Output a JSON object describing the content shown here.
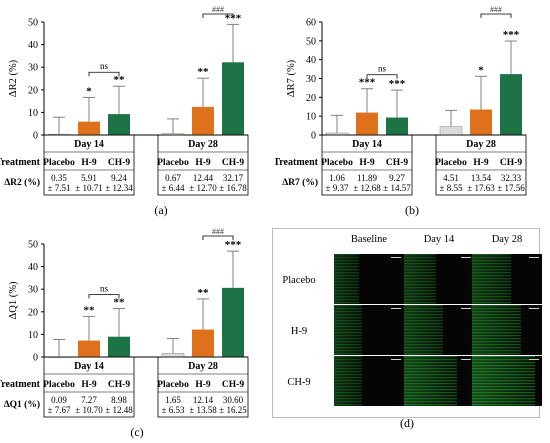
{
  "colors": {
    "placebo": "#dcdcdc",
    "h9": "#e0711c",
    "ch9": "#1e7346",
    "error": "#808080"
  },
  "panels": [
    {
      "id": "a",
      "label": "(a)",
      "ylabel": "ΔR2 (%)",
      "ylim": [
        0,
        50
      ],
      "yticks": [
        "0",
        "10",
        "20",
        "30",
        "40",
        "50"
      ],
      "group_labels": [
        "Day 14",
        "Day 28"
      ],
      "row_treatment": "Treatment",
      "row_metric": "ΔR2 (%)",
      "treatments": [
        "Placebo",
        "H-9",
        "CH-9"
      ],
      "ns_label": "ns",
      "hash_label": "###",
      "cells": [
        [
          "0.35",
          "± 7.51"
        ],
        [
          "5.91",
          "± 10.71"
        ],
        [
          "9.24",
          "± 12.34"
        ],
        [
          "0.67",
          "± 6.44"
        ],
        [
          "12.44",
          "± 12.70"
        ],
        [
          "32.17",
          "± 16.78"
        ]
      ]
    },
    {
      "id": "b",
      "label": "(b)",
      "ylabel": "ΔR7 (%)",
      "ylim": [
        0,
        60
      ],
      "yticks": [
        "0",
        "10",
        "20",
        "30",
        "40",
        "50",
        "60"
      ],
      "group_labels": [
        "Day 14",
        "Day 28"
      ],
      "row_treatment": "Treatment",
      "row_metric": "ΔR7 (%)",
      "treatments": [
        "Placebo",
        "H-9",
        "CH-9"
      ],
      "ns_label": "ns",
      "hash_label": "###",
      "cells": [
        [
          "1.06",
          "± 9.37"
        ],
        [
          "11.89",
          "± 12.68"
        ],
        [
          "9.27",
          "± 14.57"
        ],
        [
          "4.51",
          "± 8.55"
        ],
        [
          "13.54",
          "± 17.63"
        ],
        [
          "32.33",
          "± 17.56"
        ]
      ]
    },
    {
      "id": "c",
      "label": "(c)",
      "ylabel": "ΔQ1 (%)",
      "ylim": [
        0,
        50
      ],
      "yticks": [
        "0",
        "10",
        "20",
        "30",
        "40",
        "50"
      ],
      "group_labels": [
        "Day 14",
        "Day 28"
      ],
      "row_treatment": "Treatment",
      "row_metric": "ΔQ1 (%)",
      "treatments": [
        "Placebo",
        "H-9",
        "CH-9"
      ],
      "ns_label": "ns",
      "hash_label": "###",
      "cells": [
        [
          "0.09",
          "± 7.67"
        ],
        [
          "7.27",
          "± 10.70"
        ],
        [
          "8.98",
          "± 12.48"
        ],
        [
          "1.65",
          "± 6.53"
        ],
        [
          "12.14",
          "± 13.58"
        ],
        [
          "30.60",
          "± 16.25"
        ]
      ]
    }
  ],
  "chart_data": [
    {
      "type": "bar",
      "categories": [
        "Day 14",
        "Day 28"
      ],
      "ylabel": "ΔR2 (%)",
      "ylim": [
        0,
        50
      ],
      "series": [
        {
          "name": "Placebo",
          "values": [
            0.35,
            0.67
          ],
          "errors": [
            7.51,
            6.44
          ],
          "sig": [
            "",
            ""
          ]
        },
        {
          "name": "H-9",
          "values": [
            5.91,
            12.44
          ],
          "errors": [
            10.71,
            12.7
          ],
          "sig": [
            "*",
            "**"
          ]
        },
        {
          "name": "CH-9",
          "values": [
            9.24,
            32.17
          ],
          "errors": [
            12.34,
            16.78
          ],
          "sig": [
            "**",
            "***"
          ]
        }
      ],
      "annotations": [
        "ns",
        "###"
      ]
    },
    {
      "type": "bar",
      "categories": [
        "Day 14",
        "Day 28"
      ],
      "ylabel": "ΔR7 (%)",
      "ylim": [
        0,
        60
      ],
      "series": [
        {
          "name": "Placebo",
          "values": [
            1.06,
            4.51
          ],
          "errors": [
            9.37,
            8.55
          ],
          "sig": [
            "",
            ""
          ]
        },
        {
          "name": "H-9",
          "values": [
            11.89,
            13.54
          ],
          "errors": [
            12.68,
            17.63
          ],
          "sig": [
            "***",
            "*"
          ]
        },
        {
          "name": "CH-9",
          "values": [
            9.27,
            32.33
          ],
          "errors": [
            14.57,
            17.56
          ],
          "sig": [
            "***",
            "***"
          ]
        }
      ],
      "annotations": [
        "ns",
        "###"
      ]
    },
    {
      "type": "bar",
      "categories": [
        "Day 14",
        "Day 28"
      ],
      "ylabel": "ΔQ1 (%)",
      "ylim": [
        0,
        50
      ],
      "series": [
        {
          "name": "Placebo",
          "values": [
            0.09,
            1.65
          ],
          "errors": [
            7.67,
            6.53
          ],
          "sig": [
            "",
            ""
          ]
        },
        {
          "name": "H-9",
          "values": [
            7.27,
            12.14
          ],
          "errors": [
            10.7,
            13.58
          ],
          "sig": [
            "**",
            "**"
          ]
        },
        {
          "name": "CH-9",
          "values": [
            8.98,
            30.6
          ],
          "errors": [
            12.48,
            16.25
          ],
          "sig": [
            "**",
            "***"
          ]
        }
      ],
      "annotations": [
        "ns",
        "###"
      ]
    }
  ],
  "micrographs": {
    "label": "(d)",
    "columns": [
      "Baseline",
      "Day 14",
      "Day 28"
    ],
    "rows": [
      "Placebo",
      "H-9",
      "CH-9"
    ],
    "tile_color": "#050505",
    "signal_color": "#2fbf3a",
    "intensity": [
      [
        0.35,
        0.45,
        0.55
      ],
      [
        0.4,
        0.55,
        0.7
      ],
      [
        0.4,
        0.75,
        0.9
      ]
    ]
  }
}
